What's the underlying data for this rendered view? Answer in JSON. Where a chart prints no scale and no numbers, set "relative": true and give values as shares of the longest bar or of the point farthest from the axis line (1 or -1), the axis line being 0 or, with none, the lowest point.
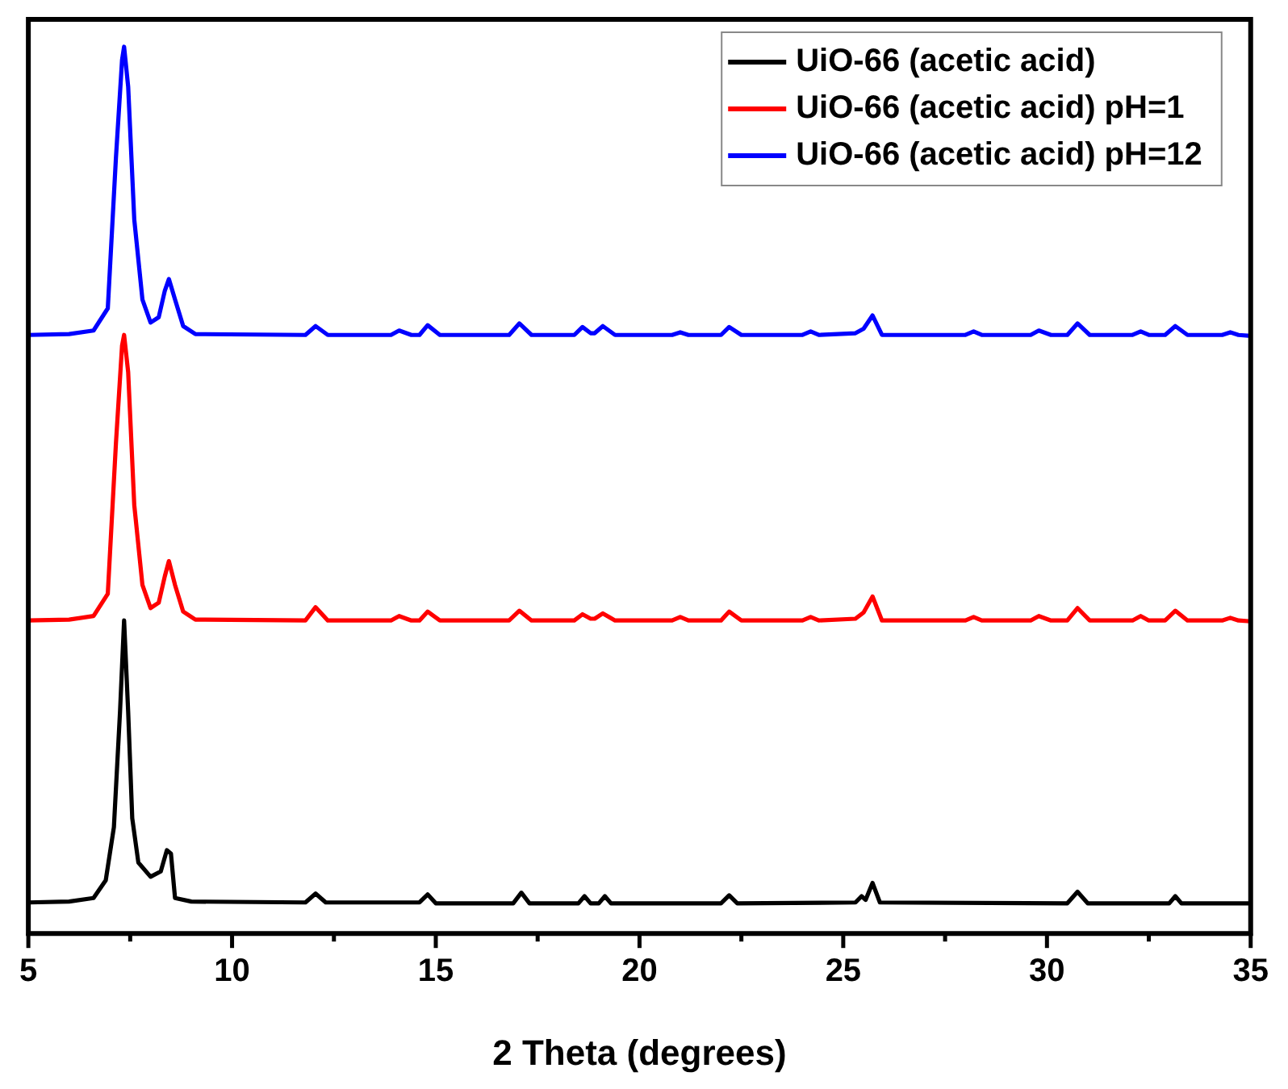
{
  "chart_data": {
    "type": "line",
    "xlabel": "2 Theta (degrees)",
    "relative": true,
    "xlim": [
      5,
      35
    ],
    "xticks": [
      5,
      {
        "value": 7.5,
        "label": null
      },
      10,
      {
        "value": 12.5,
        "label": null
      },
      15,
      {
        "value": 17.5,
        "label": null
      },
      20,
      {
        "value": 22.5,
        "label": null
      },
      25,
      {
        "value": 27.5,
        "label": null
      },
      30,
      {
        "value": 32.5,
        "label": null
      },
      35
    ],
    "legend": "top right",
    "marker": "none",
    "line_style": "solid",
    "grid": false,
    "series": [
      {
        "name": "UiO-66 (acetic acid)",
        "color": "#000000",
        "x": [
          5,
          6,
          6.6,
          6.9,
          7.1,
          7.25,
          7.35,
          7.45,
          7.55,
          7.7,
          8.0,
          8.25,
          8.4,
          8.5,
          8.6,
          9,
          11.8,
          12.05,
          12.3,
          14.6,
          14.8,
          15.0,
          16.9,
          17.1,
          17.3,
          18.5,
          18.65,
          18.8,
          19.0,
          19.15,
          19.3,
          22.0,
          22.2,
          22.4,
          25.3,
          25.45,
          25.55,
          25.72,
          25.9,
          30.5,
          30.75,
          31.0,
          33.0,
          33.15,
          33.3,
          35
        ],
        "values": [
          0.035,
          0.036,
          0.04,
          0.06,
          0.12,
          0.25,
          0.353,
          0.25,
          0.13,
          0.08,
          0.064,
          0.07,
          0.094,
          0.09,
          0.04,
          0.036,
          0.035,
          0.045,
          0.035,
          0.035,
          0.044,
          0.034,
          0.034,
          0.046,
          0.034,
          0.034,
          0.042,
          0.034,
          0.034,
          0.042,
          0.034,
          0.034,
          0.043,
          0.034,
          0.035,
          0.042,
          0.038,
          0.057,
          0.035,
          0.034,
          0.047,
          0.034,
          0.034,
          0.042,
          0.034,
          0.034
        ]
      },
      {
        "name": "UiO-66 (acetic acid) pH=1",
        "color": "#ff0000",
        "x": [
          5,
          6,
          6.6,
          6.95,
          7.15,
          7.3,
          7.35,
          7.45,
          7.6,
          7.8,
          8.0,
          8.2,
          8.35,
          8.45,
          8.6,
          8.8,
          9.1,
          11.8,
          12.05,
          12.35,
          13.9,
          14.1,
          14.4,
          14.6,
          14.8,
          15.1,
          16.8,
          17.05,
          17.35,
          18.4,
          18.6,
          18.8,
          18.9,
          19.1,
          19.4,
          20.8,
          21.0,
          21.2,
          22.0,
          22.2,
          22.5,
          24.0,
          24.2,
          24.4,
          25.3,
          25.5,
          25.72,
          25.95,
          28.0,
          28.2,
          28.4,
          29.6,
          29.8,
          30.1,
          30.5,
          30.75,
          31.05,
          32.1,
          32.3,
          32.5,
          32.9,
          33.15,
          33.45,
          34.3,
          34.5,
          34.7,
          35
        ],
        "values": [
          0.353,
          0.354,
          0.358,
          0.383,
          0.553,
          0.663,
          0.675,
          0.633,
          0.483,
          0.393,
          0.367,
          0.373,
          0.403,
          0.42,
          0.393,
          0.363,
          0.354,
          0.353,
          0.368,
          0.353,
          0.353,
          0.358,
          0.353,
          0.353,
          0.363,
          0.353,
          0.353,
          0.364,
          0.353,
          0.353,
          0.36,
          0.355,
          0.355,
          0.361,
          0.353,
          0.353,
          0.357,
          0.353,
          0.353,
          0.363,
          0.353,
          0.353,
          0.357,
          0.353,
          0.355,
          0.362,
          0.38,
          0.353,
          0.353,
          0.357,
          0.353,
          0.353,
          0.358,
          0.353,
          0.353,
          0.367,
          0.353,
          0.353,
          0.358,
          0.353,
          0.353,
          0.364,
          0.353,
          0.353,
          0.356,
          0.353,
          0.352
        ]
      },
      {
        "name": "UiO-66 (acetic acid) pH=12",
        "color": "#0000ff",
        "x": [
          5,
          6,
          6.6,
          6.95,
          7.15,
          7.3,
          7.35,
          7.45,
          7.6,
          7.8,
          8.0,
          8.2,
          8.35,
          8.45,
          8.6,
          8.8,
          9.1,
          11.8,
          12.05,
          12.35,
          13.9,
          14.1,
          14.4,
          14.6,
          14.8,
          15.1,
          16.8,
          17.05,
          17.35,
          18.4,
          18.6,
          18.8,
          18.9,
          19.1,
          19.4,
          20.8,
          21.0,
          21.2,
          22.0,
          22.2,
          22.5,
          24.0,
          24.2,
          24.4,
          25.3,
          25.5,
          25.72,
          25.95,
          28.0,
          28.2,
          28.4,
          29.6,
          29.8,
          30.1,
          30.5,
          30.75,
          31.05,
          32.1,
          32.3,
          32.5,
          32.9,
          33.15,
          33.45,
          34.3,
          34.5,
          34.7,
          35
        ],
        "values": [
          0.675,
          0.676,
          0.68,
          0.705,
          0.875,
          0.985,
          1,
          0.955,
          0.805,
          0.715,
          0.689,
          0.695,
          0.725,
          0.738,
          0.715,
          0.685,
          0.676,
          0.675,
          0.685,
          0.675,
          0.675,
          0.68,
          0.675,
          0.675,
          0.686,
          0.675,
          0.675,
          0.688,
          0.675,
          0.675,
          0.684,
          0.677,
          0.677,
          0.685,
          0.675,
          0.675,
          0.678,
          0.675,
          0.675,
          0.684,
          0.675,
          0.675,
          0.679,
          0.675,
          0.677,
          0.682,
          0.697,
          0.675,
          0.675,
          0.679,
          0.675,
          0.675,
          0.68,
          0.675,
          0.675,
          0.688,
          0.675,
          0.675,
          0.679,
          0.675,
          0.675,
          0.685,
          0.675,
          0.675,
          0.678,
          0.675,
          0.674
        ]
      }
    ]
  }
}
